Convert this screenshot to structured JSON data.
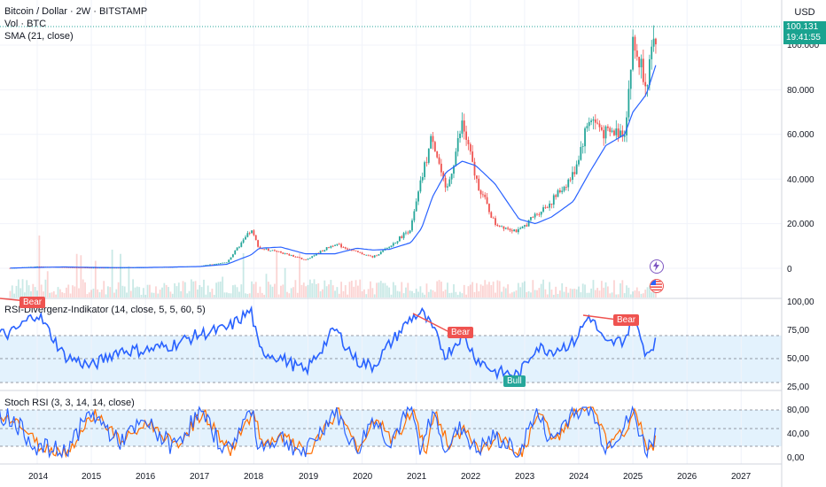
{
  "header": {
    "title": "Bitcoin / Dollar · 2W · BITSTAMP",
    "vol_label": "Vol · BTC",
    "sma_label": "SMA (21, close)",
    "currency": "USD"
  },
  "price_tag": {
    "price": "100.131",
    "countdown": "19:41:55"
  },
  "price_axis": [
    "100.000",
    "80.000",
    "60.000",
    "40.000",
    "20.000",
    "0"
  ],
  "rsi": {
    "label": "RSI-Divergenz-Indikator (14, close, 5, 5, 60, 5)",
    "axis": [
      "100,00",
      "75,00",
      "50,00",
      "25,00"
    ],
    "annotations": [
      {
        "text": "Bear",
        "kind": "bear"
      },
      {
        "text": "Bear",
        "kind": "bear"
      },
      {
        "text": "Bear",
        "kind": "bear"
      },
      {
        "text": "Bull",
        "kind": "bull"
      }
    ]
  },
  "stoch": {
    "label": "Stoch RSI (3, 3, 14, 14, close)",
    "axis": [
      "80,00",
      "40,00",
      "0,00"
    ]
  },
  "time_axis": [
    "2014",
    "2015",
    "2016",
    "2017",
    "2018",
    "2019",
    "2020",
    "2021",
    "2022",
    "2023",
    "2024",
    "2025",
    "2026",
    "2027"
  ],
  "chart_data": {
    "type": "line",
    "x_years": [
      2013.5,
      2014.0,
      2014.5,
      2015.0,
      2015.5,
      2016.0,
      2016.5,
      2017.0,
      2017.5,
      2017.95,
      2018.1,
      2018.5,
      2018.95,
      2019.5,
      2019.9,
      2020.2,
      2020.5,
      2020.9,
      2021.1,
      2021.3,
      2021.55,
      2021.85,
      2022.1,
      2022.45,
      2022.9,
      2023.2,
      2023.5,
      2023.9,
      2024.2,
      2024.5,
      2024.85,
      2025.0,
      2025.25,
      2025.45
    ],
    "price": [
      100,
      800,
      500,
      250,
      250,
      430,
      650,
      1000,
      2700,
      17000,
      9000,
      7000,
      3800,
      11000,
      7200,
      5000,
      9500,
      18000,
      40000,
      60000,
      33000,
      65000,
      40000,
      20000,
      16500,
      24000,
      30000,
      42000,
      68000,
      60000,
      62000,
      100000,
      85000,
      104000
    ],
    "sma": [
      100,
      400,
      600,
      400,
      300,
      360,
      560,
      800,
      1800,
      6000,
      9000,
      9500,
      6500,
      6500,
      9000,
      8200,
      8500,
      11500,
      18000,
      32000,
      43000,
      48000,
      46000,
      38000,
      22000,
      20000,
      23000,
      30000,
      43000,
      55000,
      60000,
      70000,
      78000,
      93000
    ],
    "rsi_values": [
      70,
      90,
      50,
      40,
      55,
      55,
      60,
      70,
      75,
      92,
      55,
      48,
      35,
      75,
      45,
      40,
      60,
      85,
      90,
      75,
      50,
      70,
      48,
      35,
      32,
      58,
      55,
      62,
      88,
      60,
      65,
      85,
      52,
      66
    ],
    "stoch_values": [
      80,
      20,
      10,
      90,
      30,
      70,
      20,
      90,
      10,
      95,
      20,
      40,
      5,
      95,
      10,
      80,
      30,
      95,
      10,
      90,
      20,
      60,
      10,
      40,
      5,
      90,
      30,
      95,
      100,
      20,
      60,
      90,
      10,
      55
    ],
    "ylim_price": [
      0,
      110000
    ],
    "ylim_rsi": [
      25,
      100
    ],
    "ylim_stoch": [
      0,
      100
    ],
    "colors": {
      "up": "#26a69a",
      "down": "#ef5350",
      "sma": "#2962ff",
      "rsi": "#2962ff",
      "stoch_k": "#2962ff",
      "stoch_d": "#ff6d00"
    }
  }
}
